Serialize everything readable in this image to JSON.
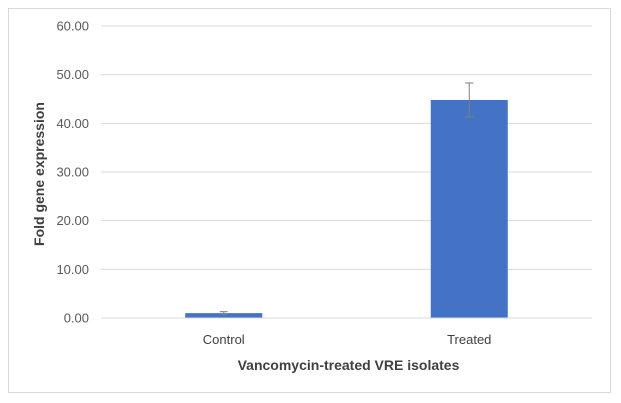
{
  "chart_data": {
    "type": "bar",
    "categories": [
      "Control",
      "Treated"
    ],
    "values": [
      1.0,
      44.8
    ],
    "error": [
      0.3,
      3.5
    ],
    "title": "",
    "xlabel": "Vancomycin-treated VRE isolates",
    "ylabel": "Fold gene expression",
    "ylim": [
      0,
      60
    ],
    "yticks": [
      "0.00",
      "10.00",
      "20.00",
      "30.00",
      "40.00",
      "50.00",
      "60.00"
    ],
    "grid": true,
    "legend": "none",
    "colors": {
      "bar": "#4472C4",
      "grid": "#d9d9d9",
      "error": "#7f7f7f"
    }
  }
}
